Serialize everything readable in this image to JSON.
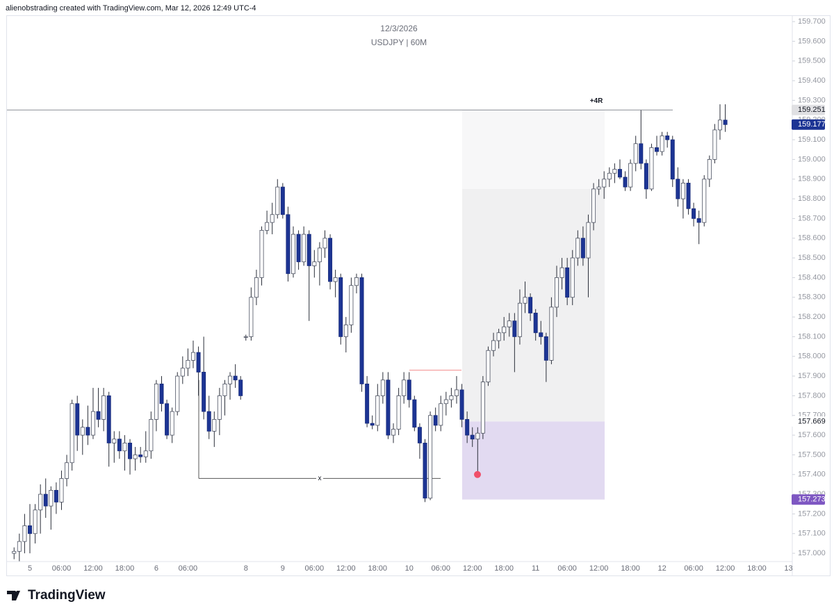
{
  "header_text": "alienobstrading created with TradingView.com, Mar 12, 2026 12:49 UTC-4",
  "logo": "TradingView",
  "chart_data": {
    "type": "candlestick",
    "title": "12/3/2026",
    "subtitle": "USDJPY | 60M",
    "up_color": "#ffffff",
    "down_color": "#1c3494",
    "outline_color": "#1c2f7c",
    "categories": [
      null,
      null,
      null,
      "5",
      null,
      null,
      null,
      null,
      null,
      "06:00",
      null,
      null,
      null,
      null,
      null,
      "12:00",
      null,
      null,
      null,
      null,
      null,
      "18:00",
      null,
      null,
      null,
      null,
      null,
      "6",
      null,
      null,
      null,
      null,
      null,
      "06:00",
      null,
      null,
      null,
      null,
      null,
      null,
      null,
      null,
      null,
      null,
      "8",
      null,
      null,
      null,
      null,
      null,
      null,
      "9",
      null,
      null,
      null,
      null,
      null,
      "06:00",
      null,
      null,
      null,
      null,
      null,
      "12:00",
      null,
      null,
      null,
      null,
      null,
      "18:00",
      null,
      null,
      null,
      null,
      null,
      "10",
      null,
      null,
      null,
      null,
      null,
      "06:00",
      null,
      null,
      null,
      null,
      null,
      "12:00",
      null,
      null,
      null,
      null,
      null,
      "18:00",
      null,
      null,
      null,
      null,
      null,
      "11",
      null,
      null,
      null,
      null,
      null,
      "06:00",
      null,
      null,
      null,
      null,
      null,
      "12:00",
      null,
      null,
      null,
      null,
      null,
      "18:00",
      null,
      null,
      null,
      null,
      null,
      "12",
      null,
      null,
      null,
      null,
      null,
      "06:00",
      null,
      null,
      null,
      null,
      null,
      "12:00",
      null,
      null,
      null,
      null,
      null,
      "18:00",
      null,
      null,
      null,
      null,
      null,
      "13"
    ],
    "ohlc": [
      [
        157.0,
        157.03,
        156.97,
        157.01
      ],
      [
        157.01,
        157.1,
        156.96,
        157.06
      ],
      [
        157.06,
        157.2,
        157.0,
        157.14
      ],
      [
        157.14,
        157.25,
        157.0,
        157.1
      ],
      [
        157.1,
        157.25,
        157.05,
        157.22
      ],
      [
        157.22,
        157.35,
        157.1,
        157.3
      ],
      [
        157.3,
        157.38,
        157.18,
        157.24
      ],
      [
        157.24,
        157.34,
        157.12,
        157.32
      ],
      [
        157.32,
        157.36,
        157.2,
        157.26
      ],
      [
        157.26,
        157.42,
        157.22,
        157.38
      ],
      [
        157.38,
        157.5,
        157.34,
        157.46
      ],
      [
        157.46,
        157.78,
        157.42,
        157.76
      ],
      [
        157.76,
        157.8,
        157.52,
        157.6
      ],
      [
        157.6,
        157.68,
        157.5,
        157.64
      ],
      [
        157.64,
        157.75,
        157.55,
        157.6
      ],
      [
        157.6,
        157.84,
        157.58,
        157.72
      ],
      [
        157.72,
        157.84,
        157.64,
        157.68
      ],
      [
        157.68,
        157.84,
        157.62,
        157.8
      ],
      [
        157.8,
        157.82,
        157.44,
        157.56
      ],
      [
        157.56,
        157.62,
        157.46,
        157.58
      ],
      [
        157.58,
        157.62,
        157.48,
        157.52
      ],
      [
        157.52,
        157.6,
        157.42,
        157.56
      ],
      [
        157.56,
        157.58,
        157.4,
        157.48
      ],
      [
        157.48,
        157.54,
        157.42,
        157.5
      ],
      [
        157.5,
        157.54,
        157.46,
        157.49
      ],
      [
        157.49,
        157.62,
        157.46,
        157.52
      ],
      [
        157.52,
        157.72,
        157.48,
        157.68
      ],
      [
        157.68,
        157.88,
        157.62,
        157.86
      ],
      [
        157.86,
        157.9,
        157.72,
        157.76
      ],
      [
        157.76,
        157.78,
        157.58,
        157.6
      ],
      [
        157.6,
        157.74,
        157.56,
        157.72
      ],
      [
        157.72,
        157.92,
        157.7,
        157.9
      ],
      [
        157.9,
        158.0,
        157.86,
        157.94
      ],
      [
        157.94,
        158.04,
        157.9,
        157.98
      ],
      [
        157.98,
        158.08,
        157.94,
        158.02
      ],
      [
        158.02,
        158.05,
        157.8,
        157.92
      ],
      [
        157.92,
        158.1,
        157.68,
        157.72
      ],
      [
        157.72,
        157.8,
        157.58,
        157.62
      ],
      [
        157.62,
        157.72,
        157.54,
        157.68
      ],
      [
        157.68,
        157.84,
        157.6,
        157.8
      ],
      [
        157.8,
        157.88,
        157.7,
        157.86
      ],
      [
        157.86,
        157.92,
        157.78,
        157.9
      ],
      [
        157.9,
        157.96,
        157.84,
        157.88
      ],
      [
        157.88,
        157.9,
        157.78,
        157.8
      ],
      [
        158.1,
        158.11,
        158.08,
        158.1
      ],
      [
        158.1,
        158.35,
        158.08,
        158.3
      ],
      [
        158.3,
        158.44,
        158.26,
        158.4
      ],
      [
        158.4,
        158.66,
        158.36,
        158.64
      ],
      [
        158.64,
        158.74,
        158.62,
        158.68
      ],
      [
        158.68,
        158.78,
        158.62,
        158.72
      ],
      [
        158.72,
        158.9,
        158.7,
        158.86
      ],
      [
        158.86,
        158.88,
        158.7,
        158.72
      ],
      [
        158.72,
        158.76,
        158.38,
        158.42
      ],
      [
        158.42,
        158.66,
        158.4,
        158.62
      ],
      [
        158.62,
        158.64,
        158.44,
        158.48
      ],
      [
        158.48,
        158.66,
        158.46,
        158.62
      ],
      [
        158.62,
        158.64,
        158.18,
        158.46
      ],
      [
        158.46,
        158.54,
        158.4,
        158.48
      ],
      [
        158.48,
        158.58,
        158.36,
        158.55
      ],
      [
        158.55,
        158.64,
        158.5,
        158.6
      ],
      [
        158.6,
        158.62,
        158.34,
        158.38
      ],
      [
        158.38,
        158.44,
        158.3,
        158.4
      ],
      [
        158.4,
        158.42,
        158.06,
        158.1
      ],
      [
        158.1,
        158.2,
        158.02,
        158.16
      ],
      [
        158.16,
        158.4,
        158.12,
        158.36
      ],
      [
        158.36,
        158.42,
        158.32,
        158.4
      ],
      [
        158.4,
        158.42,
        157.82,
        157.86
      ],
      [
        157.86,
        157.9,
        157.64,
        157.66
      ],
      [
        157.66,
        157.7,
        157.63,
        157.65
      ],
      [
        157.65,
        157.86,
        157.62,
        157.8
      ],
      [
        157.8,
        157.92,
        157.76,
        157.88
      ],
      [
        157.88,
        157.92,
        157.58,
        157.6
      ],
      [
        157.6,
        157.66,
        157.56,
        157.63
      ],
      [
        157.63,
        157.84,
        157.6,
        157.8
      ],
      [
        157.8,
        157.92,
        157.76,
        157.88
      ],
      [
        157.88,
        157.92,
        157.74,
        157.78
      ],
      [
        157.78,
        157.8,
        157.62,
        157.64
      ],
      [
        157.64,
        157.66,
        157.48,
        157.56
      ],
      [
        157.56,
        157.58,
        157.26,
        157.28
      ],
      [
        157.28,
        157.72,
        157.27,
        157.7
      ],
      [
        157.7,
        157.74,
        157.62,
        157.65
      ],
      [
        157.65,
        157.8,
        157.62,
        157.76
      ],
      [
        157.76,
        157.82,
        157.7,
        157.78
      ],
      [
        157.78,
        157.84,
        157.74,
        157.8
      ],
      [
        157.8,
        157.9,
        157.76,
        157.83
      ],
      [
        157.83,
        157.86,
        157.64,
        157.68
      ],
      [
        157.68,
        157.72,
        157.56,
        157.6
      ],
      [
        157.6,
        157.64,
        157.54,
        157.58
      ],
      [
        157.58,
        157.64,
        157.4,
        157.61
      ],
      [
        157.61,
        157.9,
        157.58,
        157.87
      ],
      [
        157.87,
        158.05,
        157.85,
        158.03
      ],
      [
        158.03,
        158.12,
        158.0,
        158.08
      ],
      [
        158.08,
        158.14,
        158.04,
        158.12
      ],
      [
        158.12,
        158.2,
        158.08,
        158.15
      ],
      [
        158.15,
        158.22,
        158.1,
        158.18
      ],
      [
        158.18,
        158.22,
        157.92,
        158.1
      ],
      [
        158.1,
        158.34,
        158.06,
        158.27
      ],
      [
        158.27,
        158.38,
        158.22,
        158.3
      ],
      [
        158.3,
        158.32,
        158.18,
        158.22
      ],
      [
        158.22,
        158.24,
        158.08,
        158.12
      ],
      [
        158.12,
        158.18,
        158.06,
        158.1
      ],
      [
        158.1,
        158.12,
        157.87,
        157.98
      ],
      [
        157.98,
        158.3,
        157.96,
        158.25
      ],
      [
        158.25,
        158.46,
        158.2,
        158.4
      ],
      [
        158.4,
        158.5,
        158.34,
        158.45
      ],
      [
        158.45,
        158.5,
        158.26,
        158.3
      ],
      [
        158.3,
        158.54,
        158.26,
        158.5
      ],
      [
        158.5,
        158.64,
        158.46,
        158.6
      ],
      [
        158.6,
        158.66,
        158.46,
        158.5
      ],
      [
        158.5,
        158.72,
        158.3,
        158.68
      ],
      [
        158.68,
        158.88,
        158.64,
        158.85
      ],
      [
        158.85,
        158.9,
        158.82,
        158.86
      ],
      [
        158.86,
        158.94,
        158.8,
        158.9
      ],
      [
        158.9,
        158.96,
        158.86,
        158.93
      ],
      [
        158.93,
        158.98,
        158.88,
        158.95
      ],
      [
        158.95,
        159.0,
        158.9,
        158.91
      ],
      [
        158.91,
        158.94,
        158.84,
        158.86
      ],
      [
        158.86,
        159.0,
        158.84,
        158.98
      ],
      [
        158.98,
        159.12,
        158.94,
        159.08
      ],
      [
        159.08,
        159.25,
        158.95,
        158.98
      ],
      [
        158.98,
        159.0,
        158.8,
        158.85
      ],
      [
        158.85,
        159.08,
        158.84,
        159.06
      ],
      [
        159.06,
        159.12,
        159.02,
        159.04
      ],
      [
        159.04,
        159.14,
        159.02,
        159.12
      ],
      [
        159.12,
        159.14,
        159.06,
        159.1
      ],
      [
        159.1,
        159.12,
        158.86,
        158.9
      ],
      [
        158.9,
        158.96,
        158.76,
        158.8
      ],
      [
        158.8,
        158.9,
        158.7,
        158.88
      ],
      [
        158.88,
        158.9,
        158.72,
        158.75
      ],
      [
        158.75,
        158.78,
        158.66,
        158.7
      ],
      [
        158.7,
        158.74,
        158.57,
        158.68
      ],
      [
        158.68,
        158.92,
        158.66,
        158.9
      ],
      [
        158.9,
        159.02,
        158.86,
        159.0
      ],
      [
        159.0,
        159.18,
        158.98,
        159.15
      ],
      [
        159.15,
        159.28,
        159.1,
        159.2
      ],
      [
        159.2,
        159.28,
        159.14,
        159.177
      ],
      null,
      null,
      null,
      null,
      null,
      null,
      null,
      null,
      null,
      null,
      null,
      null
    ],
    "ylim": [
      156.958,
      159.732
    ],
    "yticks": [
      {
        "value": 157.0,
        "label": "157.000"
      },
      {
        "value": 157.1,
        "label": "157.100"
      },
      {
        "value": 157.2,
        "label": "157.200"
      },
      {
        "value": 157.3,
        "label": "157.300"
      },
      {
        "value": 157.4,
        "label": "157.400"
      },
      {
        "value": 157.5,
        "label": "157.500"
      },
      {
        "value": 157.6,
        "label": "157.600"
      },
      {
        "value": 157.7,
        "label": "157.700"
      },
      {
        "value": 157.8,
        "label": "157.800"
      },
      {
        "value": 157.9,
        "label": "157.900"
      },
      {
        "value": 158.0,
        "label": "158.000"
      },
      {
        "value": 158.1,
        "label": "158.100"
      },
      {
        "value": 158.2,
        "label": "158.200"
      },
      {
        "value": 158.3,
        "label": "158.300"
      },
      {
        "value": 158.4,
        "label": "158.400"
      },
      {
        "value": 158.5,
        "label": "158.500"
      },
      {
        "value": 158.6,
        "label": "158.600"
      },
      {
        "value": 158.7,
        "label": "158.700"
      },
      {
        "value": 158.8,
        "label": "158.800"
      },
      {
        "value": 158.9,
        "label": "158.900"
      },
      {
        "value": 159.0,
        "label": "159.000"
      },
      {
        "value": 159.1,
        "label": "159.100"
      },
      {
        "value": 159.2,
        "label": "159.200"
      },
      {
        "value": 159.3,
        "label": "159.300"
      },
      {
        "value": 159.4,
        "label": "159.400"
      },
      {
        "value": 159.5,
        "label": "159.500"
      },
      {
        "value": 159.6,
        "label": "159.600"
      },
      {
        "value": 159.7,
        "label": "159.700"
      }
    ],
    "drawings": {
      "hline": {
        "price": 159.251,
        "color": "#8a8d96"
      },
      "position": {
        "entry": 157.669,
        "stop": 157.273,
        "target": 159.251,
        "level": 158.85,
        "label": "+4R"
      },
      "red_line": {
        "price": 157.93,
        "color": "#f28b8b"
      },
      "measure": {
        "price": 157.38,
        "top": 157.88,
        "label": "x"
      },
      "marker": {
        "price": 157.4,
        "color": "#f0506a"
      }
    }
  }
}
